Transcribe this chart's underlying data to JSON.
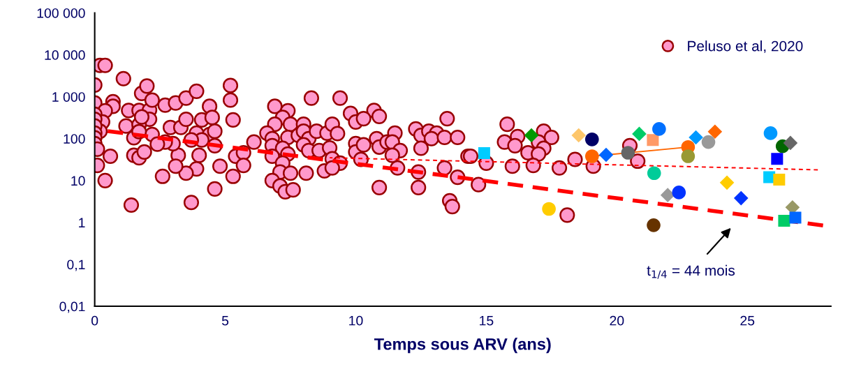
{
  "chart_data": {
    "type": "scatter",
    "xlabel": "Temps sous ARV (ans)",
    "xlim": [
      0,
      28.2
    ],
    "xticks": [
      0,
      5,
      10,
      15,
      20,
      25
    ],
    "ylim": [
      0.01,
      100000
    ],
    "log": true,
    "yticks": [
      {
        "value": 0.01,
        "label": "0,01"
      },
      {
        "value": 0.1,
        "label": "0,1"
      },
      1,
      10,
      100,
      {
        "value": 1000,
        "label": "1 000"
      },
      {
        "value": 10000,
        "label": "10 000"
      },
      {
        "value": 100000,
        "label": "100 000"
      }
    ],
    "grid": false,
    "legend": "top right",
    "annotations": [
      "t$_{1/4}$ = 44 mois"
    ],
    "series": [
      {
        "name": "Peluso et al, 2020",
        "color": "#ff99cc",
        "marker": "circle",
        "x": [
          0.2,
          0.4,
          0.0,
          1.1,
          0.0,
          0.7,
          0.7,
          0.4,
          0.3,
          0.2,
          0.0,
          0.0,
          0.0,
          0.0,
          0.0,
          0.0,
          0.1,
          0.6,
          0.1,
          0.4,
          1.4,
          1.3,
          1.2,
          1.5,
          1.8,
          2.0,
          1.7,
          2.1,
          2.2,
          2.1,
          1.7,
          1.8,
          2.2,
          1.5,
          1.7,
          1.9,
          2.7,
          3.1,
          3.5,
          3.9,
          4.4,
          2.9,
          3.3,
          3.5,
          4.1,
          4.5,
          3.9,
          4.4,
          4.6,
          4.6,
          4.1,
          3.7,
          4.0,
          3.9,
          3.5,
          3.2,
          3.1,
          3.0,
          2.7,
          2.4,
          2.6,
          1.7,
          4.8,
          4.6,
          3.7,
          5.2,
          5.2,
          5.3,
          5.4,
          5.7,
          5.7,
          5.3,
          6.1,
          6.9,
          7.4,
          7.2,
          6.9,
          7.5,
          6.6,
          6.8,
          7.4,
          7.8,
          8.0,
          8.0,
          8.2,
          8.0,
          8.2,
          6.8,
          7.2,
          7.4,
          6.8,
          7.2,
          7.1,
          7.5,
          8.1,
          6.8,
          7.1,
          7.3,
          7.6,
          8.5,
          8.9,
          9.1,
          9.3,
          8.3,
          9.4,
          9.8,
          10.0,
          8.6,
          9.0,
          9.1,
          9.4,
          8.8,
          9.1,
          10.0,
          10.0,
          10.2,
          10.7,
          10.9,
          10.3,
          10.8,
          10.3,
          10.9,
          11.5,
          11.2,
          11.4,
          11.7,
          11.4,
          11.6,
          10.9,
          12.3,
          12.5,
          12.8,
          13.1,
          12.9,
          13.4,
          13.9,
          12.5,
          13.5,
          12.4,
          12.4,
          13.4,
          13.9,
          13.6,
          13.7,
          14.3,
          14.4,
          14.7,
          15.0,
          15.8,
          16.2,
          15.7,
          16.1,
          16.6,
          16.0,
          17.2,
          17.5,
          17.0,
          17.2,
          17.0,
          16.8,
          17.8,
          18.4,
          19.1,
          20.5,
          20.8,
          18.1
        ],
        "values": [
          5600,
          5600,
          1900,
          2700,
          710,
          760,
          590,
          460,
          250,
          150,
          380,
          290,
          200,
          135,
          105,
          76,
          56,
          38,
          23,
          10,
          2.6,
          470,
          200,
          105,
          1200,
          1800,
          470,
          480,
          830,
          290,
          215,
          330,
          126,
          40,
          35,
          48,
          630,
          710,
          930,
          1350,
          590,
          185,
          185,
          290,
          280,
          320,
          135,
          126,
          150,
          68,
          93,
          93,
          40,
          19,
          15,
          40,
          22,
          76,
          83,
          74,
          12.6,
          147,
          22,
          6.3,
          3.0,
          1860,
          830,
          280,
          38,
          46,
          23,
          12.6,
          83,
          590,
          460,
          320,
          220,
          220,
          135,
          100,
          107,
          120,
          220,
          150,
          100,
          71,
          52,
          68,
          59,
          43,
          38,
          26,
          16,
          15,
          15,
          10,
          7.4,
          5.4,
          6,
          150,
          135,
          220,
          132,
          930,
          930,
          400,
          250,
          52,
          60,
          33,
          26,
          17,
          20,
          76,
          48,
          32,
          470,
          340,
          300,
          100,
          71,
          63,
          135,
          83,
          83,
          52,
          40,
          20,
          6.8,
          170,
          120,
          150,
          135,
          100,
          107,
          107,
          59,
          300,
          16,
          6.8,
          20,
          12,
          3.3,
          2.4,
          38,
          38,
          8,
          26,
          220,
          112,
          83,
          68,
          46,
          22,
          150,
          107,
          83,
          59,
          43,
          23,
          20,
          32,
          22,
          68,
          29,
          1.5
        ]
      },
      {
        "type": "line",
        "color": "#ff0000",
        "line_style": "dashed",
        "marker": "none",
        "x": [
          0.2,
          27.9
        ],
        "values": [
          160,
          0.85
        ]
      },
      {
        "type": "line",
        "color": "#ff0000",
        "line_style": "dotted",
        "marker": "none",
        "x": [
          9.0,
          27.7
        ],
        "values": [
          35,
          18
        ]
      },
      {
        "type": "line",
        "color": "#ff6600",
        "line_style": "solid",
        "marker": "circle",
        "x": [
          19.05,
          22.73
        ],
        "values": [
          38,
          63
        ]
      },
      {
        "color": "#00ccff",
        "marker": "square",
        "x": [
          14.92
        ],
        "values": [
          45
        ]
      },
      {
        "color": "#009900",
        "marker": "diamond",
        "x": [
          16.73
        ],
        "values": [
          120
        ]
      },
      {
        "color": "#ffcc00",
        "marker": "circle",
        "x": [
          17.4
        ],
        "values": [
          2.1
        ]
      },
      {
        "color": "#fdc66b",
        "marker": "diamond",
        "x": [
          18.54
        ],
        "values": [
          120
        ]
      },
      {
        "color": "#000066",
        "marker": "circle",
        "x": [
          19.05
        ],
        "values": [
          96
        ]
      },
      {
        "color": "#0066ff",
        "marker": "diamond",
        "x": [
          19.59
        ],
        "values": [
          41
        ]
      },
      {
        "color": "#666666",
        "marker": "circle",
        "x": [
          20.43
        ],
        "values": [
          46
        ]
      },
      {
        "color": "#00cc66",
        "marker": "diamond",
        "x": [
          20.86
        ],
        "values": [
          130
        ]
      },
      {
        "color": "#ff9966",
        "marker": "square",
        "x": [
          21.38
        ],
        "values": [
          93
        ]
      },
      {
        "color": "#0070ff",
        "marker": "circle",
        "x": [
          21.62
        ],
        "values": [
          170
        ]
      },
      {
        "color": "#00cc99",
        "marker": "circle",
        "x": [
          21.43
        ],
        "values": [
          15
        ]
      },
      {
        "color": "#999999",
        "marker": "diamond",
        "x": [
          21.95
        ],
        "values": [
          4.5
        ]
      },
      {
        "color": "#663300",
        "marker": "circle",
        "x": [
          21.41
        ],
        "values": [
          0.86
        ]
      },
      {
        "color": "#0033ff",
        "marker": "circle",
        "x": [
          22.38
        ],
        "values": [
          5.2
        ]
      },
      {
        "color": "#0099ff",
        "marker": "diamond",
        "x": [
          23.03
        ],
        "values": [
          107
        ]
      },
      {
        "color": "#ff6600",
        "marker": "diamond",
        "x": [
          23.76
        ],
        "values": [
          147
        ]
      },
      {
        "color": "#999933",
        "marker": "circle",
        "x": [
          22.73
        ],
        "values": [
          38
        ]
      },
      {
        "color": "#999999",
        "marker": "circle",
        "x": [
          23.51
        ],
        "values": [
          83
        ]
      },
      {
        "color": "#ffcc00",
        "marker": "diamond",
        "x": [
          24.22
        ],
        "values": [
          8.9
        ]
      },
      {
        "color": "#0033ff",
        "marker": "diamond",
        "x": [
          24.76
        ],
        "values": [
          3.8
        ]
      },
      {
        "color": "#0099ff",
        "marker": "circle",
        "x": [
          25.89
        ],
        "values": [
          135
        ]
      },
      {
        "color": "#006600",
        "marker": "circle",
        "x": [
          26.35
        ],
        "values": [
          66
        ]
      },
      {
        "color": "#666666",
        "marker": "diamond",
        "x": [
          26.65
        ],
        "values": [
          79
        ]
      },
      {
        "color": "#0000ff",
        "marker": "square",
        "x": [
          26.14
        ],
        "values": [
          33
        ]
      },
      {
        "color": "#00ccff",
        "marker": "square",
        "x": [
          25.84
        ],
        "values": [
          12
        ]
      },
      {
        "color": "#ffcc00",
        "marker": "square",
        "x": [
          26.22
        ],
        "values": [
          10.5
        ]
      },
      {
        "color": "#999966",
        "marker": "diamond",
        "x": [
          26.73
        ],
        "values": [
          2.3
        ]
      },
      {
        "color": "#00cc66",
        "marker": "square",
        "x": [
          26.41
        ],
        "values": [
          1.1
        ]
      },
      {
        "color": "#0066ff",
        "marker": "square",
        "x": [
          26.84
        ],
        "values": [
          1.3
        ]
      }
    ]
  }
}
